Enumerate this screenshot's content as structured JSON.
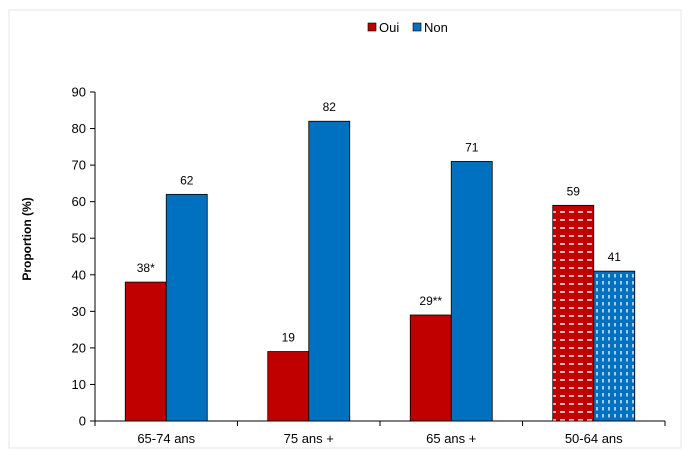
{
  "chart_data": {
    "type": "bar",
    "categories": [
      "65-74 ans",
      "75 ans +",
      "65 ans +",
      "50-64 ans"
    ],
    "series": [
      {
        "name": "Oui",
        "color": "#c00000",
        "values": [
          38,
          19,
          29,
          59
        ],
        "labels": [
          "38*",
          "19",
          "29**",
          "59"
        ]
      },
      {
        "name": "Non",
        "color": "#0070c0",
        "values": [
          62,
          82,
          71,
          41
        ],
        "labels": [
          "62",
          "82",
          "71",
          "41"
        ]
      }
    ],
    "patterned_categories": [
      "50-64 ans"
    ],
    "ylabel": "Proportion (%)",
    "xlabel": "",
    "title": "",
    "ylim": [
      0,
      90
    ],
    "yticks": [
      0,
      10,
      20,
      30,
      40,
      50,
      60,
      70,
      80,
      90
    ],
    "grid": false,
    "legend_position": "top-center"
  }
}
